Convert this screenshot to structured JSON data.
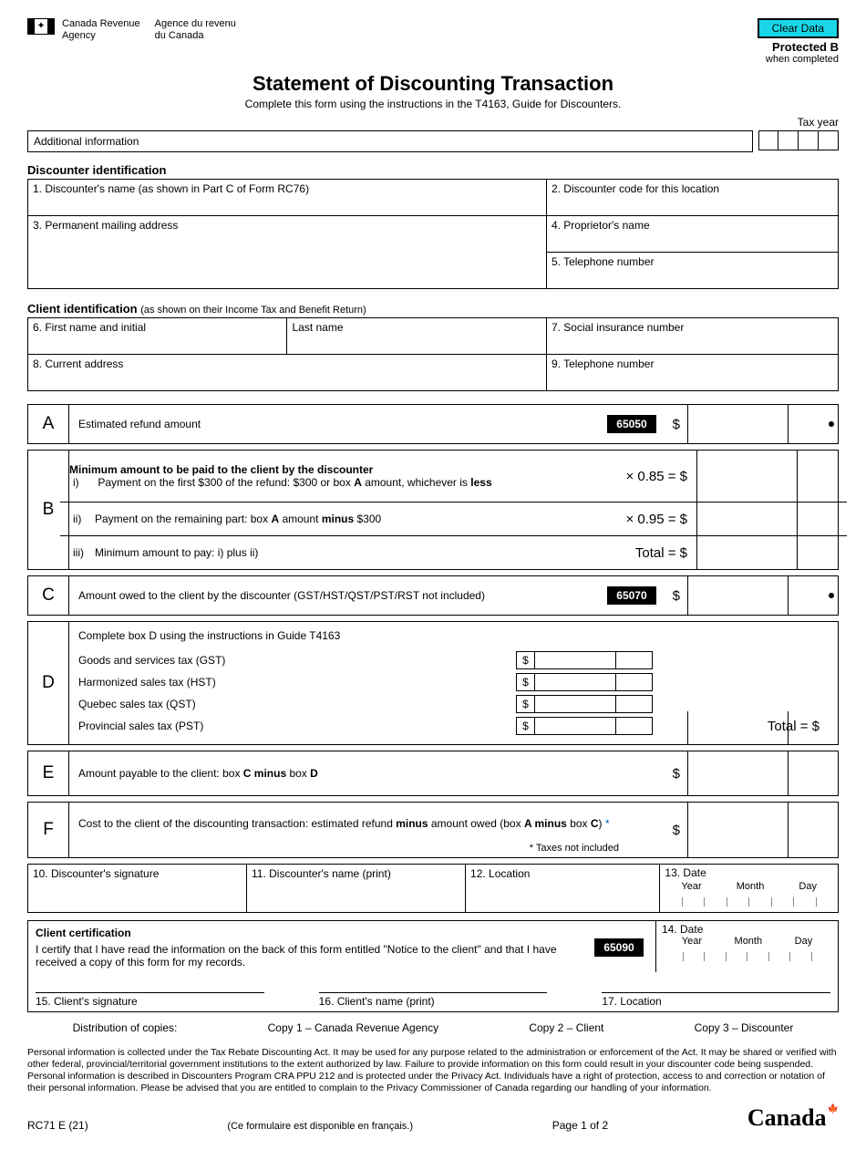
{
  "header": {
    "agency_en": "Canada Revenue\nAgency",
    "agency_fr": "Agence du revenu\ndu Canada",
    "clear_button": "Clear Data",
    "protected": "Protected B",
    "when_completed": "when completed",
    "title": "Statement of Discounting Transaction",
    "subtitle": "Complete this form using the instructions in the T4163, Guide for Discounters.",
    "tax_year_label": "Tax year",
    "additional_info": "Additional information"
  },
  "discounter": {
    "heading": "Discounter identification",
    "f1": "1. Discounter's name (as shown in Part C of Form RC76)",
    "f2": "2. Discounter code for this location",
    "f3": "3. Permanent mailing address",
    "f4": "4. Proprietor's name",
    "f5": "5. Telephone number"
  },
  "client": {
    "heading": "Client identification",
    "heading_sub": "(as shown on their Income Tax and Benefit Return)",
    "f6": "6. First name and initial",
    "f6b": "Last name",
    "f7": "7. Social insurance number",
    "f8": "8. Current address",
    "f9": "9. Telephone number"
  },
  "calc": {
    "A": {
      "letter": "A",
      "label": "Estimated refund amount",
      "code": "65050"
    },
    "B": {
      "letter": "B",
      "title": "Minimum amount to be paid to the client by the discounter",
      "i": "Payment on the first $300 of the refund: $300 or box A amount, whichever is less",
      "i_mult": "× 0.85 = $",
      "ii": "Payment on the remaining part: box A amount minus $300",
      "ii_mult": "× 0.95 = $",
      "iii": "Minimum amount to pay: i) plus ii)",
      "iii_total": "Total  = $",
      "r1": "i)",
      "r2": "ii)",
      "r3": "iii)"
    },
    "C": {
      "letter": "C",
      "label": "Amount owed to the client by the discounter (GST/HST/QST/PST/RST not included)",
      "code": "65070"
    },
    "D": {
      "letter": "D",
      "intro": "Complete box D using the instructions in Guide T4163",
      "gst": "Goods and services tax (GST)",
      "hst": "Harmonized sales tax (HST)",
      "qst": "Quebec sales tax (QST)",
      "pst": "Provincial sales tax (PST)",
      "total": "Total  = $"
    },
    "E": {
      "letter": "E",
      "label": "Amount payable to the client: box C minus box D"
    },
    "F": {
      "letter": "F",
      "label": "Cost to the client of the discounting transaction: estimated refund minus amount owed (box A minus box C) ",
      "star": "*",
      "note": "* Taxes not included"
    }
  },
  "sig": {
    "f10": "10. Discounter's signature",
    "f11": "11. Discounter's name (print)",
    "f12": "12. Location",
    "f13": "13. Date",
    "year": "Year",
    "month": "Month",
    "day": "Day"
  },
  "cert": {
    "heading": "Client certification",
    "text": "I certify that I have read the information on the back of this form entitled \"Notice to the client\" and that I have received a copy of this form for my records.",
    "code": "65090",
    "f14": "14. Date",
    "f15": "15. Client's signature",
    "f16": "16. Client's name (print)",
    "f17": "17. Location"
  },
  "dist": {
    "label": "Distribution of copies:",
    "c1": "Copy 1 – Canada Revenue Agency",
    "c2": "Copy 2 – Client",
    "c3": "Copy 3 – Discounter"
  },
  "privacy": "Personal information is collected under the Tax Rebate Discounting Act. It may be used for any purpose related to the administration or enforcement of the Act. It may be shared or verified with other federal, provincial/territorial government institutions to the extent authorized by law. Failure to provide information on this form could result in your discounter code being suspended. Personal information is described in Discounters Program CRA PPU 212 and is protected under the Privacy Act. Individuals have a right of protection, access to and correction or notation of their personal information. Please be advised that you are entitled to complain to the Privacy Commissioner of Canada regarding our handling of your information.",
  "footer": {
    "form_no": "RC71 E (21)",
    "french": "(Ce formulaire est disponible en français.)",
    "page": "Page 1 of 2",
    "wordmark": "Canada"
  },
  "dollar": "$"
}
